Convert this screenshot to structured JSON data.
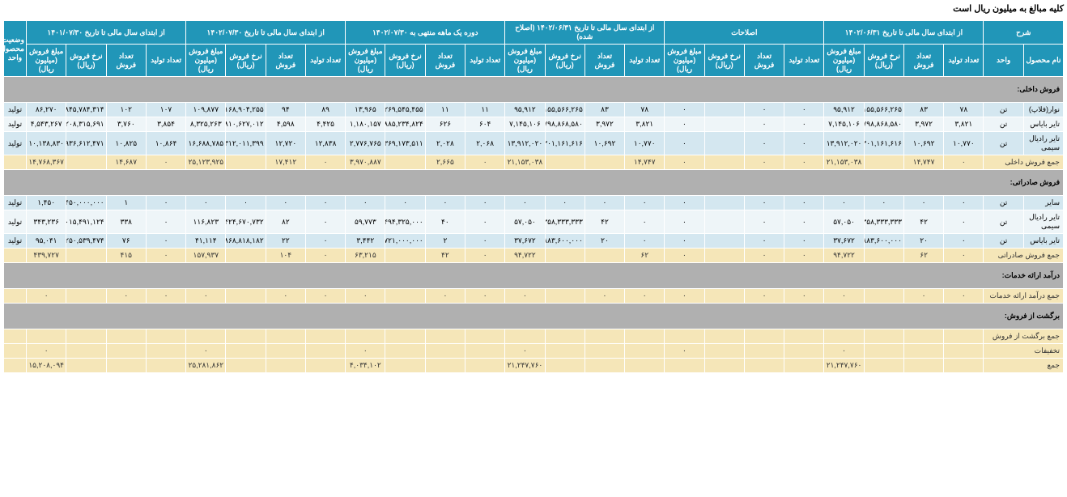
{
  "page_title": "کلیه مبالغ به میلیون ریال است",
  "header_groups": [
    "شرح",
    "از ابتدای سال مالی تا تاریخ ۱۴۰۲/۰۶/۳۱",
    "اصلاحات",
    "از ابتدای سال مالی تا تاریخ ۱۴۰۲/۰۶/۳۱ (اصلاح شده)",
    "دوره یک ماهه منتهی به ۱۴۰۲/۰۷/۳۰",
    "از ابتدای سال مالی تا تاریخ ۱۴۰۲/۰۷/۳۰",
    "از ابتدای سال مالی تا تاریخ ۱۴۰۱/۰۷/۳۰",
    "وضعیت محصول-واحد"
  ],
  "sub_headers": {
    "name": "نام محصول",
    "unit": "واحد",
    "prod": "تعداد تولید",
    "sale": "تعداد فروش",
    "rate": "نرخ فروش (ریال)",
    "amount": "مبلغ فروش (میلیون ریال)"
  },
  "sections": [
    {
      "title": "فروش داخلی:",
      "rows": [
        {
          "name": "نوار(فلاپ)",
          "unit": "تن",
          "p1": {
            "prod": "۷۸",
            "sale": "۸۳",
            "rate": "۱,۱۵۵,۵۶۶,۲۶۵",
            "amount": "۹۵,۹۱۲"
          },
          "adj": {
            "prod": "۰",
            "sale": "۰",
            "rate": "",
            "amount": "۰"
          },
          "p1a": {
            "prod": "۷۸",
            "sale": "۸۳",
            "rate": "۱,۱۵۵,۵۶۶,۲۶۵",
            "amount": "۹۵,۹۱۲"
          },
          "mo": {
            "prod": "۱۱",
            "sale": "۱۱",
            "rate": "۱,۲۶۹,۵۴۵,۴۵۵",
            "amount": "۱۳,۹۶۵"
          },
          "ytd": {
            "prod": "۸۹",
            "sale": "۹۴",
            "rate": "۱,۱۶۸,۹۰۴,۲۵۵",
            "amount": "۱۰۹,۸۷۷"
          },
          "py": {
            "prod": "۱۰۷",
            "sale": "۱۰۲",
            "rate": "۸۴۵,۷۸۴,۳۱۴",
            "amount": "۸۶,۲۷۰"
          },
          "status": "تولید"
        },
        {
          "name": "تایر بایاس",
          "unit": "تن",
          "p1": {
            "prod": "۳,۸۲۱",
            "sale": "۳,۹۷۲",
            "rate": "۱,۷۹۸,۸۶۸,۵۸۰",
            "amount": "۷,۱۴۵,۱۰۶"
          },
          "adj": {
            "prod": "۰",
            "sale": "۰",
            "rate": "",
            "amount": "۰"
          },
          "p1a": {
            "prod": "۳,۸۲۱",
            "sale": "۳,۹۷۲",
            "rate": "۱,۷۹۸,۸۶۸,۵۸۰",
            "amount": "۷,۱۴۵,۱۰۶"
          },
          "mo": {
            "prod": "۶۰۴",
            "sale": "۶۲۶",
            "rate": "۱,۸۸۵,۲۳۴,۸۲۴",
            "amount": "۱,۱۸۰,۱۵۷"
          },
          "ytd": {
            "prod": "۴,۴۲۵",
            "sale": "۴,۵۹۸",
            "rate": "۱,۸۱۰,۶۲۷,۰۱۲",
            "amount": "۸,۳۲۵,۲۶۳"
          },
          "py": {
            "prod": "۳,۸۵۴",
            "sale": "۳,۷۶۰",
            "rate": "۱,۲۰۸,۳۱۵,۶۹۱",
            "amount": "۴,۵۴۳,۲۶۷"
          },
          "status": "تولید"
        },
        {
          "name": "تایر رادیال سیمی",
          "unit": "تن",
          "p1": {
            "prod": "۱۰,۷۷۰",
            "sale": "۱۰,۶۹۲",
            "rate": "۱,۳۰۱,۱۶۱,۶۱۶",
            "amount": "۱۳,۹۱۲,۰۲۰"
          },
          "adj": {
            "prod": "۰",
            "sale": "۰",
            "rate": "",
            "amount": "۰"
          },
          "p1a": {
            "prod": "۱۰,۷۷۰",
            "sale": "۱۰,۶۹۲",
            "rate": "۱,۳۰۱,۱۶۱,۶۱۶",
            "amount": "۱۳,۹۱۲,۰۲۰"
          },
          "mo": {
            "prod": "۲,۰۶۸",
            "sale": "۲,۰۲۸",
            "rate": "۱,۳۶۹,۱۷۳,۵۱۱",
            "amount": "۲,۷۷۶,۷۶۵"
          },
          "ytd": {
            "prod": "۱۲,۸۳۸",
            "sale": "۱۲,۷۲۰",
            "rate": "۱,۳۱۲,۰۱۱,۳۹۹",
            "amount": "۱۶,۶۸۸,۷۸۵"
          },
          "py": {
            "prod": "۱۰,۸۶۴",
            "sale": "۱۰,۸۲۵",
            "rate": "۹۳۶,۶۱۲,۴۷۱",
            "amount": "۱۰,۱۳۸,۸۳۰"
          },
          "status": "تولید"
        }
      ],
      "sum": {
        "name": "جمع فروش داخلی",
        "p1": {
          "prod": "۰",
          "sale": "۱۴,۷۴۷",
          "amount": "۲۱,۱۵۳,۰۳۸"
        },
        "adj": {
          "prod": "۰",
          "sale": "۰",
          "amount": "۰"
        },
        "p1a": {
          "prod": "۱۴,۷۴۷",
          "sale": "",
          "amount": "۲۱,۱۵۳,۰۳۸"
        },
        "mo": {
          "prod": "۰",
          "sale": "۲,۶۶۵",
          "amount": "۳,۹۷۰,۸۸۷"
        },
        "ytd": {
          "prod": "۰",
          "sale": "۱۷,۴۱۲",
          "amount": "۲۵,۱۲۳,۹۲۵"
        },
        "py": {
          "prod": "۰",
          "sale": "۱۴,۶۸۷",
          "amount": "۱۴,۷۶۸,۳۶۷"
        }
      }
    },
    {
      "title": "فروش صادراتی:",
      "rows": [
        {
          "name": "سایر",
          "unit": "تن",
          "p1": {
            "prod": "۰",
            "sale": "۰",
            "rate": "۰",
            "amount": "۰"
          },
          "adj": {
            "prod": "۰",
            "sale": "۰",
            "rate": "",
            "amount": "۰"
          },
          "p1a": {
            "prod": "۰",
            "sale": "۰",
            "rate": "۰",
            "amount": "۰"
          },
          "mo": {
            "prod": "۰",
            "sale": "۰",
            "rate": "۰",
            "amount": "۰"
          },
          "ytd": {
            "prod": "۰",
            "sale": "۰",
            "rate": "۰",
            "amount": "۰"
          },
          "py": {
            "prod": "۰",
            "sale": "۱",
            "rate": "۱,۴۵۰,۰۰۰,۰۰۰",
            "amount": "۱,۴۵۰"
          },
          "status": "تولید"
        },
        {
          "name": "تایر رادیال سیمی",
          "unit": "تن",
          "p1": {
            "prod": "۰",
            "sale": "۴۲",
            "rate": "۱,۳۵۸,۳۳۳,۳۳۳",
            "amount": "۵۷,۰۵۰"
          },
          "adj": {
            "prod": "۰",
            "sale": "۰",
            "rate": "",
            "amount": "۰"
          },
          "p1a": {
            "prod": "۰",
            "sale": "۴۲",
            "rate": "۱,۳۵۸,۳۳۳,۳۳۳",
            "amount": "۵۷,۰۵۰"
          },
          "mo": {
            "prod": "۰",
            "sale": "۴۰",
            "rate": "۱,۴۹۴,۳۲۵,۰۰۰",
            "amount": "۵۹,۷۷۳"
          },
          "ytd": {
            "prod": "۰",
            "sale": "۸۲",
            "rate": "۱,۴۲۴,۶۷۰,۷۳۲",
            "amount": "۱۱۶,۸۲۳"
          },
          "py": {
            "prod": "۰",
            "sale": "۳۳۸",
            "rate": "۱,۰۱۵,۴۹۱,۱۲۴",
            "amount": "۳۴۳,۲۳۶"
          },
          "status": "تولید"
        },
        {
          "name": "تایر بایاس",
          "unit": "تن",
          "p1": {
            "prod": "۰",
            "sale": "۲۰",
            "rate": "۱,۸۸۳,۶۰۰,۰۰۰",
            "amount": "۳۷,۶۷۲"
          },
          "adj": {
            "prod": "۰",
            "sale": "۰",
            "rate": "",
            "amount": "۰"
          },
          "p1a": {
            "prod": "۰",
            "sale": "۲۰",
            "rate": "۱,۸۸۳,۶۰۰,۰۰۰",
            "amount": "۳۷,۶۷۲"
          },
          "mo": {
            "prod": "۰",
            "sale": "۲",
            "rate": "۱,۷۲۱,۰۰۰,۰۰۰",
            "amount": "۳,۴۴۲"
          },
          "ytd": {
            "prod": "۰",
            "sale": "۲۲",
            "rate": "۱,۸۶۸,۸۱۸,۱۸۲",
            "amount": "۴۱,۱۱۴"
          },
          "py": {
            "prod": "۰",
            "sale": "۷۶",
            "rate": "۱,۲۵۰,۵۳۹,۴۷۴",
            "amount": "۹۵,۰۴۱"
          },
          "status": "تولید"
        }
      ],
      "sum": {
        "name": "جمع فروش صادراتی",
        "p1": {
          "prod": "۰",
          "sale": "۶۲",
          "amount": "۹۴,۷۲۲"
        },
        "adj": {
          "prod": "۰",
          "sale": "۰",
          "amount": "۰"
        },
        "p1a": {
          "prod": "۶۲",
          "sale": "",
          "amount": "۹۴,۷۲۲"
        },
        "mo": {
          "prod": "۰",
          "sale": "۴۲",
          "amount": "۶۳,۲۱۵"
        },
        "ytd": {
          "prod": "۰",
          "sale": "۱۰۴",
          "amount": "۱۵۷,۹۳۷"
        },
        "py": {
          "prod": "۰",
          "sale": "۴۱۵",
          "amount": "۴۳۹,۷۲۷"
        }
      }
    },
    {
      "title": "درآمد ارائه خدمات:",
      "rows": [],
      "sum": {
        "name": "جمع درآمد ارائه خدمات",
        "p1": {
          "prod": "۰",
          "sale": "۰",
          "amount": "۰"
        },
        "adj": {
          "prod": "۰",
          "sale": "۰",
          "amount": "۰"
        },
        "p1a": {
          "prod": "۰",
          "sale": "۰",
          "amount": "۰"
        },
        "mo": {
          "prod": "۰",
          "sale": "۰",
          "amount": "۰"
        },
        "ytd": {
          "prod": "۰",
          "sale": "۰",
          "amount": "۰"
        },
        "py": {
          "prod": "۰",
          "sale": "۰",
          "amount": "۰"
        }
      }
    },
    {
      "title": "برگشت از فروش:",
      "rows": [],
      "sum": {
        "name": "جمع برگشت از فروش",
        "p1": {
          "prod": "",
          "sale": "",
          "amount": ""
        },
        "adj": {
          "prod": "",
          "sale": "",
          "amount": ""
        },
        "p1a": {
          "prod": "",
          "sale": "",
          "amount": ""
        },
        "mo": {
          "prod": "",
          "sale": "",
          "amount": ""
        },
        "ytd": {
          "prod": "",
          "sale": "",
          "amount": ""
        },
        "py": {
          "prod": "",
          "sale": "",
          "amount": ""
        }
      }
    }
  ],
  "footer_rows": [
    {
      "name": "تخفیفات",
      "p1": {
        "amount": "۰"
      },
      "adj": {
        "amount": "۰"
      },
      "p1a": {
        "amount": "۰"
      },
      "mo": {
        "amount": "۰"
      },
      "ytd": {
        "amount": "۰"
      },
      "py": {
        "amount": "۰"
      }
    },
    {
      "name": "جمع",
      "p1": {
        "amount": "۲۱,۲۴۷,۷۶۰"
      },
      "adj": {
        "amount": ""
      },
      "p1a": {
        "amount": "۲۱,۲۴۷,۷۶۰"
      },
      "mo": {
        "amount": "۴,۰۳۴,۱۰۲"
      },
      "ytd": {
        "amount": "۲۵,۲۸۱,۸۶۲"
      },
      "py": {
        "amount": "۱۵,۲۰۸,۰۹۴"
      }
    }
  ]
}
